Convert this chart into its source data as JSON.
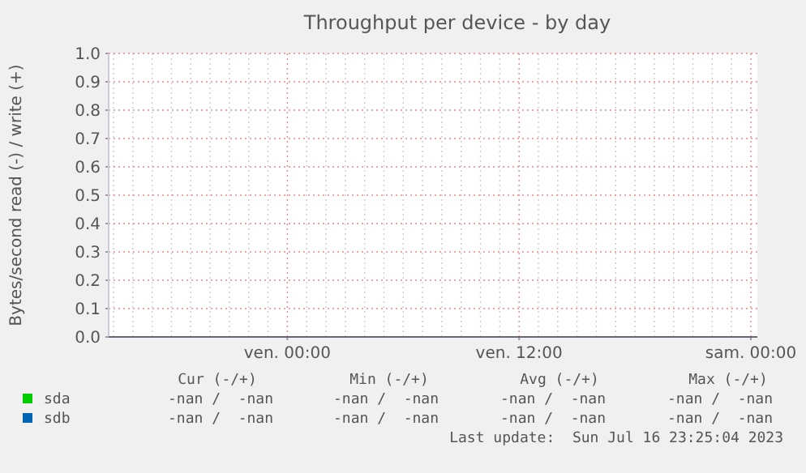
{
  "chart_data": {
    "type": "line",
    "title": "Throughput per device - by day",
    "ylabel": "Bytes/second read (-) / write (+)",
    "categories": [
      null,
      null,
      null,
      null,
      null,
      null,
      null,
      null,
      null,
      "ven. 00:00",
      null,
      null,
      null,
      null,
      null,
      null,
      null,
      null,
      null,
      null,
      null,
      "ven. 12:00",
      null,
      null,
      null,
      null,
      null,
      null,
      null,
      null,
      null,
      null,
      null,
      "sam. 00:00"
    ],
    "series": [
      {
        "name": "sda",
        "color": "#00cc00",
        "values": [
          null,
          null,
          null,
          null,
          null,
          null,
          null,
          null,
          null,
          null,
          null,
          null,
          null,
          null,
          null,
          null,
          null,
          null,
          null,
          null,
          null,
          null,
          null,
          null,
          null,
          null,
          null,
          null,
          null,
          null,
          null,
          null,
          null,
          null
        ]
      },
      {
        "name": "sdb",
        "color": "#0066b3",
        "values": [
          null,
          null,
          null,
          null,
          null,
          null,
          null,
          null,
          null,
          null,
          null,
          null,
          null,
          null,
          null,
          null,
          null,
          null,
          null,
          null,
          null,
          null,
          null,
          null,
          null,
          null,
          null,
          null,
          null,
          null,
          null,
          null,
          null,
          null
        ]
      }
    ],
    "ylim": [
      0,
      1
    ],
    "yticks": [
      {
        "value": 0,
        "label": "0.0"
      },
      {
        "value": 0.1,
        "label": "0.1"
      },
      {
        "value": 0.2,
        "label": "0.2"
      },
      {
        "value": 0.3,
        "label": "0.3"
      },
      {
        "value": 0.4,
        "label": "0.4"
      },
      {
        "value": 0.5,
        "label": "0.5"
      },
      {
        "value": 0.6,
        "label": "0.6"
      },
      {
        "value": 0.7,
        "label": "0.7"
      },
      {
        "value": 0.8,
        "label": "0.8"
      },
      {
        "value": 0.9,
        "label": "0.9"
      },
      {
        "value": 1,
        "label": "1.0"
      }
    ],
    "grid": true,
    "legend": "bottom",
    "annotations": [
      "Cur (-/+)",
      "Min (-/+)",
      "Avg (-/+)",
      "Max (-/+)",
      "-nan /  -nan",
      "-nan /  -nan",
      "-nan /  -nan",
      "-nan /  -nan",
      "-nan /  -nan",
      "-nan /  -nan",
      "-nan /  -nan",
      "-nan /  -nan",
      "Last update:  Sun Jul 16 23:25:04 2023"
    ]
  }
}
